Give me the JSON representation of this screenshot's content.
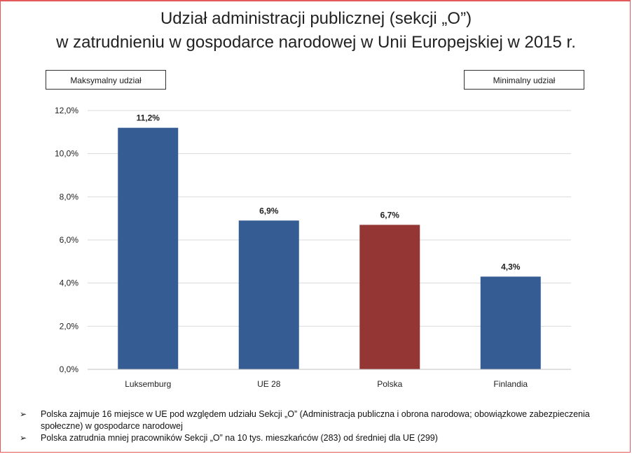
{
  "title": {
    "line1": "Udział administracji publicznej (sekcji „O”)",
    "line2": "w zatrudnieniu w gospodarce narodowej w Unii Europejskiej w 2015 r."
  },
  "labels": {
    "max_box": "Maksymalny udział",
    "min_box": "Minimalny udział"
  },
  "colors": {
    "bar_default": "#355d94",
    "bar_highlight": "#943634",
    "gridline": "#d9d9d9",
    "slide_border": "#e35a5a"
  },
  "chart_data": {
    "type": "bar",
    "categories": [
      "Luksemburg",
      "UE 28",
      "Polska",
      "Finlandia"
    ],
    "values": [
      11.2,
      6.9,
      6.7,
      4.3
    ],
    "value_labels": [
      "11,2%",
      "6,9%",
      "6,7%",
      "4,3%"
    ],
    "highlight_index": 2,
    "ylim": [
      0,
      12
    ],
    "yticks": [
      0,
      2,
      4,
      6,
      8,
      10,
      12
    ],
    "ytick_labels": [
      "0,0%",
      "2,0%",
      "4,0%",
      "6,0%",
      "8,0%",
      "10,0%",
      "12,0%"
    ],
    "grid": true,
    "xlabel": "",
    "ylabel": ""
  },
  "bullets": [
    "Polska zajmuje 16 miejsce w UE pod względem udziału Sekcji „O” (Administracja publiczna i obrona narodowa; obowiązkowe zabezpieczenia społeczne) w gospodarce narodowej",
    "Polska zatrudnia mniej pracowników Sekcji „O” na 10 tys. mieszkańców (283) od średniej dla UE (299)"
  ]
}
